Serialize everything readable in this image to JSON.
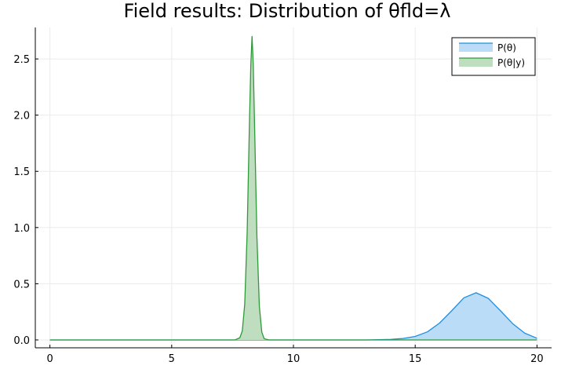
{
  "chart_data": {
    "type": "area",
    "title": "Field results: Distribution of θfld=λ",
    "xlabel": "",
    "ylabel": "",
    "xlim": [
      -0.6,
      20.6
    ],
    "ylim": [
      -0.07,
      2.78
    ],
    "xticks": [
      0,
      5,
      10,
      15,
      20
    ],
    "xtick_labels": [
      "0",
      "5",
      "10",
      "15",
      "20"
    ],
    "yticks": [
      0.0,
      0.5,
      1.0,
      1.5,
      2.0,
      2.5
    ],
    "ytick_labels": [
      "0.0",
      "0.5",
      "1.0",
      "1.5",
      "2.0",
      "2.5"
    ],
    "grid": true,
    "legend_position": "top-right",
    "series": [
      {
        "name": "P(θ)",
        "color": "#1f8fe0",
        "fill": "#bbdcf7",
        "x": [
          0,
          13.0,
          14.0,
          14.5,
          15.0,
          15.5,
          16.0,
          16.5,
          17.0,
          17.5,
          18.0,
          18.5,
          19.0,
          19.5,
          20.0
        ],
        "y": [
          0.0,
          0.0,
          0.005,
          0.013,
          0.031,
          0.072,
          0.15,
          0.26,
          0.375,
          0.42,
          0.37,
          0.26,
          0.145,
          0.06,
          0.015
        ]
      },
      {
        "name": "P(θ|y)",
        "color": "#2e9a3a",
        "fill": "#bfddbf",
        "x": [
          0,
          7.6,
          7.8,
          7.9,
          8.0,
          8.1,
          8.2,
          8.25,
          8.3,
          8.35,
          8.4,
          8.5,
          8.6,
          8.7,
          8.8,
          9.0,
          20.0
        ],
        "y": [
          0.0,
          0.0,
          0.02,
          0.08,
          0.32,
          0.96,
          2.0,
          2.45,
          2.7,
          2.45,
          1.95,
          0.92,
          0.3,
          0.07,
          0.01,
          0.0,
          0.0
        ]
      }
    ]
  }
}
